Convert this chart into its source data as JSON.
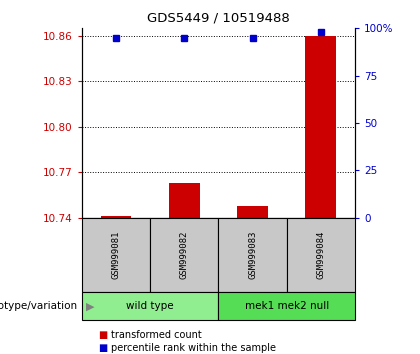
{
  "title": "GDS5449 / 10519488",
  "samples": [
    "GSM999081",
    "GSM999082",
    "GSM999083",
    "GSM999084"
  ],
  "bar_values": [
    10.741,
    10.763,
    10.748,
    10.86
  ],
  "bar_baseline": 10.74,
  "dot_values": [
    95.0,
    95.0,
    95.0,
    98.0
  ],
  "ylim_left": [
    10.74,
    10.865
  ],
  "ylim_right": [
    0,
    100
  ],
  "yticks_left": [
    10.74,
    10.77,
    10.8,
    10.83,
    10.86
  ],
  "ytick_labels_left": [
    "10.74",
    "10.77",
    "10.80",
    "10.83",
    "10.86"
  ],
  "yticks_right": [
    0,
    25,
    50,
    75,
    100
  ],
  "ytick_labels_right": [
    "0",
    "25",
    "50",
    "75",
    "100%"
  ],
  "bar_color": "#cc0000",
  "dot_color": "#0000cc",
  "groups": [
    {
      "label": "wild type",
      "samples": [
        0,
        1
      ],
      "color": "#90ee90"
    },
    {
      "label": "mek1 mek2 null",
      "samples": [
        2,
        3
      ],
      "color": "#55dd55"
    }
  ],
  "group_label_prefix": "genotype/variation",
  "sample_box_color": "#c8c8c8",
  "legend_items": [
    {
      "label": "transformed count",
      "color": "#cc0000"
    },
    {
      "label": "percentile rank within the sample",
      "color": "#0000cc"
    }
  ]
}
